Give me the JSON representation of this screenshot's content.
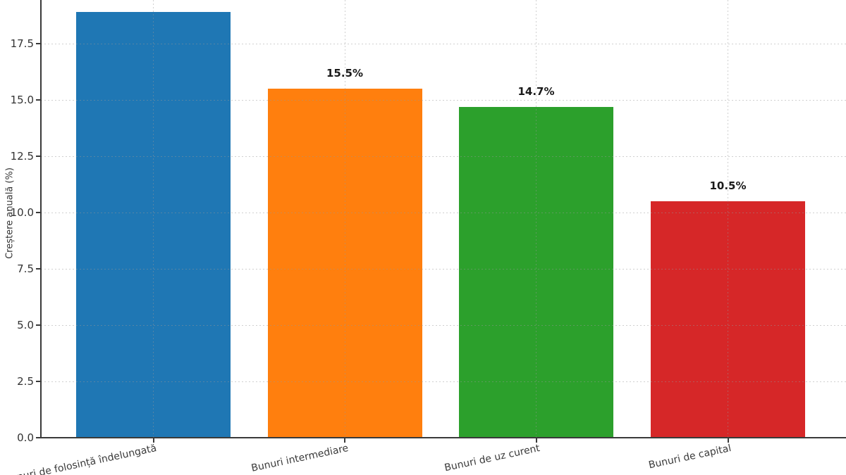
{
  "figure": {
    "background": "#ffffff",
    "axis_text_color": "#333333",
    "spine_color": "#3a3a3a",
    "grid_color": "#c9c9c9"
  },
  "chart_data": {
    "type": "bar",
    "title": "",
    "xlabel": "",
    "ylabel": "Creștere anuală (%)",
    "categories": [
      "Bunuri de folosință îndelungată",
      "Bunuri intermediare",
      "Bunuri de uz curent",
      "Bunuri de capital"
    ],
    "first_category_visible_text": "folosință îndelungată",
    "values": [
      18.9,
      15.5,
      14.7,
      10.5
    ],
    "bar_labels": [
      "",
      "15.5%",
      "14.7%",
      "10.5%"
    ],
    "bar_colors": [
      "#1f77b4",
      "#ff7f0e",
      "#2ca02c",
      "#d62728"
    ],
    "ytick_labels": [
      "0.0",
      "2.5",
      "5.0",
      "7.5",
      "10.0",
      "12.5",
      "15.0",
      "17.5"
    ],
    "ytick_values": [
      0,
      2.5,
      5,
      7.5,
      10,
      12.5,
      15,
      17.5
    ],
    "ylim_visible": [
      0,
      19.4
    ],
    "grid": {
      "style": "dotted",
      "horizontal": true,
      "vertical": true
    },
    "legend_position": "none"
  }
}
